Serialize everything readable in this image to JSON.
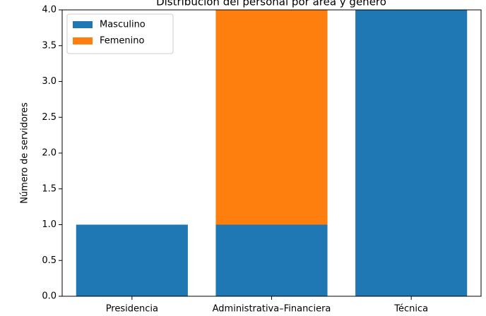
{
  "chart_data": {
    "type": "stacked_bar",
    "title": "Distribución del personal por área y género",
    "ylabel": "Número de servidores",
    "categories": [
      "Presidencia",
      "Administrativa–Financiera",
      "Técnica"
    ],
    "series": [
      {
        "name": "Masculino",
        "color": "#1f77b4",
        "values": [
          1,
          1,
          4
        ]
      },
      {
        "name": "Femenino",
        "color": "#ff7f0e",
        "values": [
          0,
          3,
          0
        ]
      }
    ],
    "ylim": [
      0,
      4
    ],
    "yticks": [
      {
        "value": 0,
        "label": "0.0"
      },
      {
        "value": 0.5,
        "label": "0.5"
      },
      {
        "value": 1,
        "label": "1.0"
      },
      {
        "value": 1.5,
        "label": "1.5"
      },
      {
        "value": 2,
        "label": "2.0"
      },
      {
        "value": 2.5,
        "label": "2.5"
      },
      {
        "value": 3,
        "label": "3.0"
      },
      {
        "value": 3.5,
        "label": "3.5"
      },
      {
        "value": 4,
        "label": "4.0"
      }
    ],
    "legend": "upper left"
  }
}
